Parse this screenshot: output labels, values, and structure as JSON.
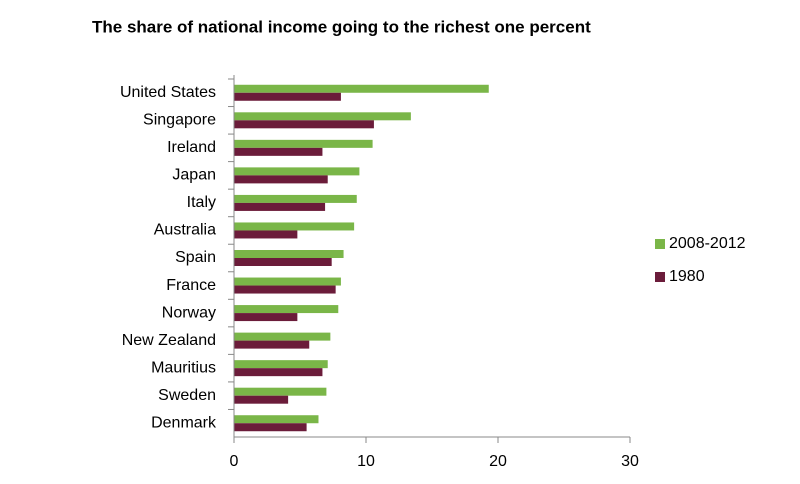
{
  "chart_data": {
    "type": "barh",
    "title": "The share of national income going to the richest one percent",
    "categories": [
      "United States",
      "Singapore",
      "Ireland",
      "Japan",
      "Italy",
      "Australia",
      "Spain",
      "France",
      "Norway",
      "New Zealand",
      "Mauritius",
      "Sweden",
      "Denmark"
    ],
    "series": [
      {
        "name": "2008-2012",
        "color": "#7ab648",
        "values": [
          19.3,
          13.4,
          10.5,
          9.5,
          9.3,
          9.1,
          8.3,
          8.1,
          7.9,
          7.3,
          7.1,
          7.0,
          6.4
        ]
      },
      {
        "name": "1980",
        "color": "#6b1c3a",
        "values": [
          8.1,
          10.6,
          6.7,
          7.1,
          6.9,
          4.8,
          7.4,
          7.7,
          4.8,
          5.7,
          6.7,
          4.1,
          5.5
        ]
      }
    ],
    "xlim": [
      0,
      30
    ],
    "xticks": [
      0,
      10,
      20,
      30
    ],
    "legend": "right"
  }
}
